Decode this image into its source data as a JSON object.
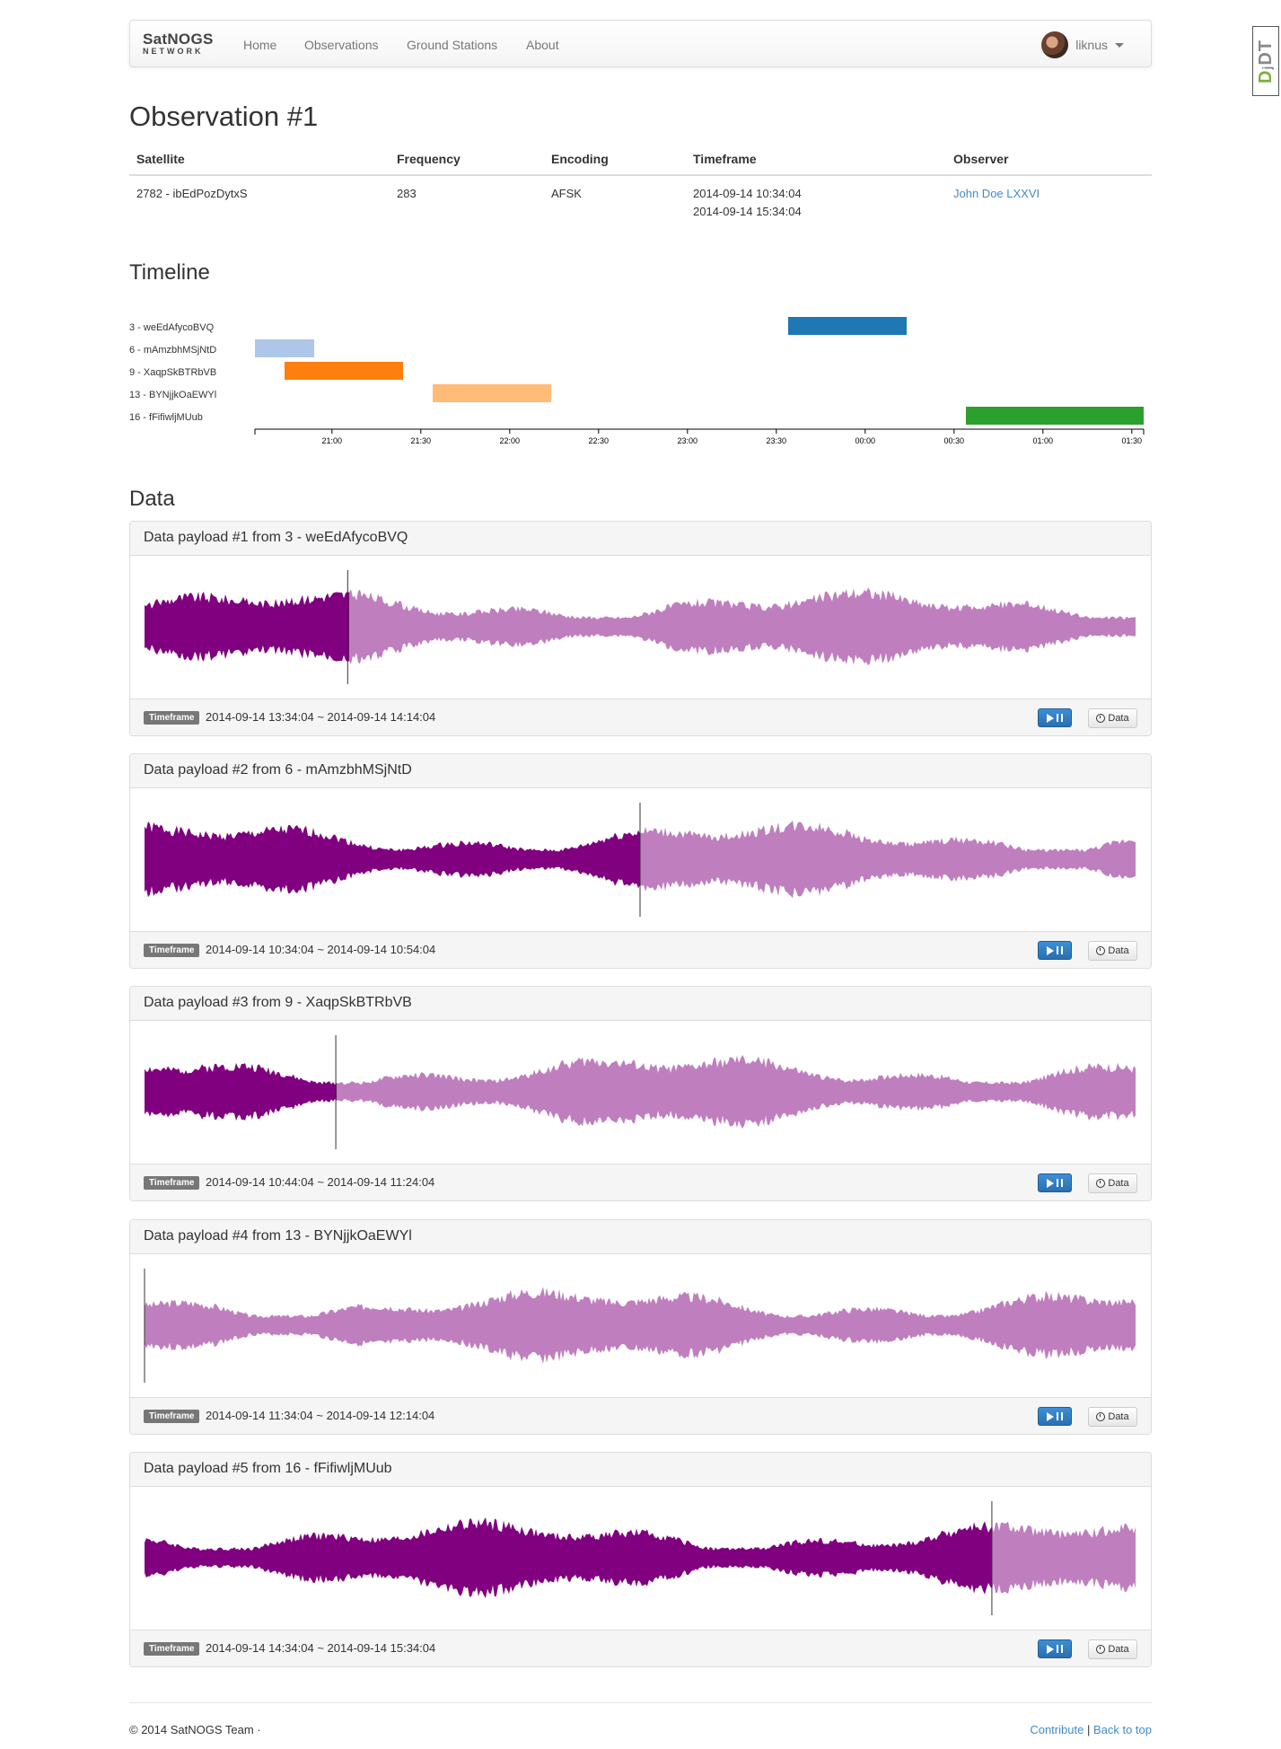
{
  "nav": {
    "brand_top": "SatNOGS",
    "brand_bottom": "NETWORK",
    "links": [
      "Home",
      "Observations",
      "Ground Stations",
      "About"
    ],
    "user": "liknus"
  },
  "page_title": "Observation #1",
  "observation_table": {
    "headers": [
      "Satellite",
      "Frequency",
      "Encoding",
      "Timeframe",
      "Observer"
    ],
    "satellite": "2782 - ibEdPozDytxS",
    "frequency": "283",
    "encoding": "AFSK",
    "timeframe_start": "2014-09-14 10:34:04",
    "timeframe_end": "2014-09-14 15:34:04",
    "observer": "John Doe LXXVI"
  },
  "timeline_heading": "Timeline",
  "chart_data": {
    "type": "gantt",
    "x_ticks": [
      "21:00",
      "21:30",
      "22:00",
      "22:30",
      "23:00",
      "23:30",
      "00:00",
      "00:30",
      "01:00",
      "01:30"
    ],
    "x_range_minutes": [
      -26,
      274
    ],
    "rows": [
      {
        "label": "3 - weEdAfycoBVQ",
        "start": 154,
        "end": 194,
        "color": "#1f77b4"
      },
      {
        "label": "6 - mAmzbhMSjNtD",
        "start": -26,
        "end": -6,
        "color": "#aec7e8"
      },
      {
        "label": "9 - XaqpSkBTRbVB",
        "start": -16,
        "end": 24,
        "color": "#ff7f0e"
      },
      {
        "label": "13 - BYNjjkOaEWYl",
        "start": 34,
        "end": 74,
        "color": "#ffbb78"
      },
      {
        "label": "16 - fFifiwljMUub",
        "start": 214,
        "end": 274,
        "color": "#2ca02c"
      }
    ]
  },
  "data_heading": "Data",
  "payloads": [
    {
      "title": "Data payload #1 from 3 - weEdAfycoBVQ",
      "timeframe": "2014-09-14 13:34:04 ~ 2014-09-14 14:14:04",
      "progress": 0.205
    },
    {
      "title": "Data payload #2 from 6 - mAmzbhMSjNtD",
      "timeframe": "2014-09-14 10:34:04 ~ 2014-09-14 10:54:04",
      "progress": 0.5
    },
    {
      "title": "Data payload #3 from 9 - XaqpSkBTRbVB",
      "timeframe": "2014-09-14 10:44:04 ~ 2014-09-14 11:24:04",
      "progress": 0.193
    },
    {
      "title": "Data payload #4 from 13 - BYNjjkOaEWYl",
      "timeframe": "2014-09-14 11:34:04 ~ 2014-09-14 12:14:04",
      "progress": 0.0
    },
    {
      "title": "Data payload #5 from 16 - fFifiwljMUub",
      "timeframe": "2014-09-14 14:34:04 ~ 2014-09-14 15:34:04",
      "progress": 0.855
    }
  ],
  "labels": {
    "timeframe": "Timeframe",
    "data_button": "Data"
  },
  "colors": {
    "wave_played": "#800080",
    "wave_unplayed": "#bf7fbf"
  },
  "footer": {
    "copyright": "© 2014 SatNOGS Team ·",
    "contribute": "Contribute",
    "separator": "|",
    "back_to_top": "Back to top"
  },
  "side_badge": {
    "prefix": "D",
    "suffix": "DT",
    "mark": "j"
  }
}
